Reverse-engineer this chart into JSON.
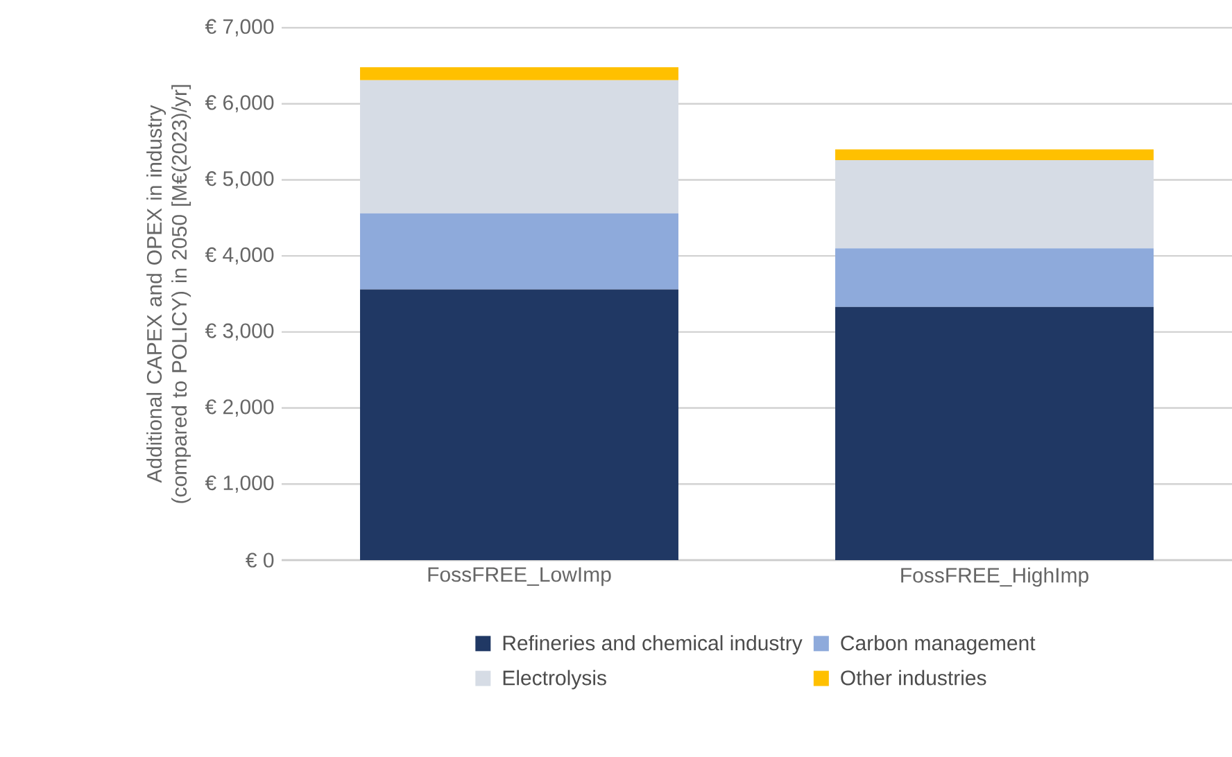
{
  "chart_data": {
    "type": "bar",
    "stacked": true,
    "ylabel": "Additional CAPEX and OPEX in industry (compared to POLICY) in 2050 [M€(2023)/yr]",
    "categories": [
      "FossFREE_LowImp",
      "FossFREE_HighImp"
    ],
    "series": [
      {
        "name": "Refineries and chemical industry",
        "color": "#203864",
        "values": [
          3560,
          3330
        ]
      },
      {
        "name": "Carbon management",
        "color": "#8eaadb",
        "values": [
          1000,
          770
        ]
      },
      {
        "name": "Electrolysis",
        "color": "#d6dce5",
        "values": [
          1750,
          1160
        ]
      },
      {
        "name": "Other industries",
        "color": "#ffc000",
        "values": [
          170,
          140
        ]
      }
    ],
    "ylim": [
      0,
      7000
    ],
    "yticks": [
      {
        "value": 0,
        "label": "€ 0"
      },
      {
        "value": 1000,
        "label": "€ 1,000"
      },
      {
        "value": 2000,
        "label": "€ 2,000"
      },
      {
        "value": 3000,
        "label": "€ 3,000"
      },
      {
        "value": 4000,
        "label": "€ 4,000"
      },
      {
        "value": 5000,
        "label": "€ 5,000"
      },
      {
        "value": 6000,
        "label": "€ 6,000"
      },
      {
        "value": 7000,
        "label": "€ 7,000"
      }
    ],
    "grid": "y",
    "legend": "bottom"
  }
}
